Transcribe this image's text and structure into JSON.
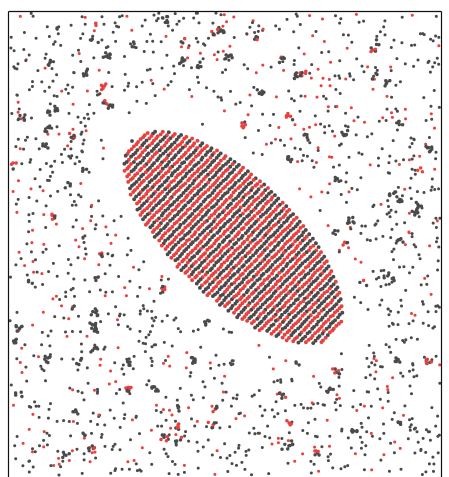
{
  "image": {
    "subject": "particle-simulation-snapshot",
    "particle_colors": {
      "dark": "#4a4a4a",
      "red": "#e8413f"
    },
    "frame_color": "#000000",
    "background": "#ffffff",
    "has_frame_left_top_right": true,
    "dense_cluster": {
      "shape": "tilted-ellipse",
      "pattern": "alternating-red-dark-stripes"
    },
    "sparse_particles": {
      "distribution": "scattered-with-small-clumps"
    }
  }
}
